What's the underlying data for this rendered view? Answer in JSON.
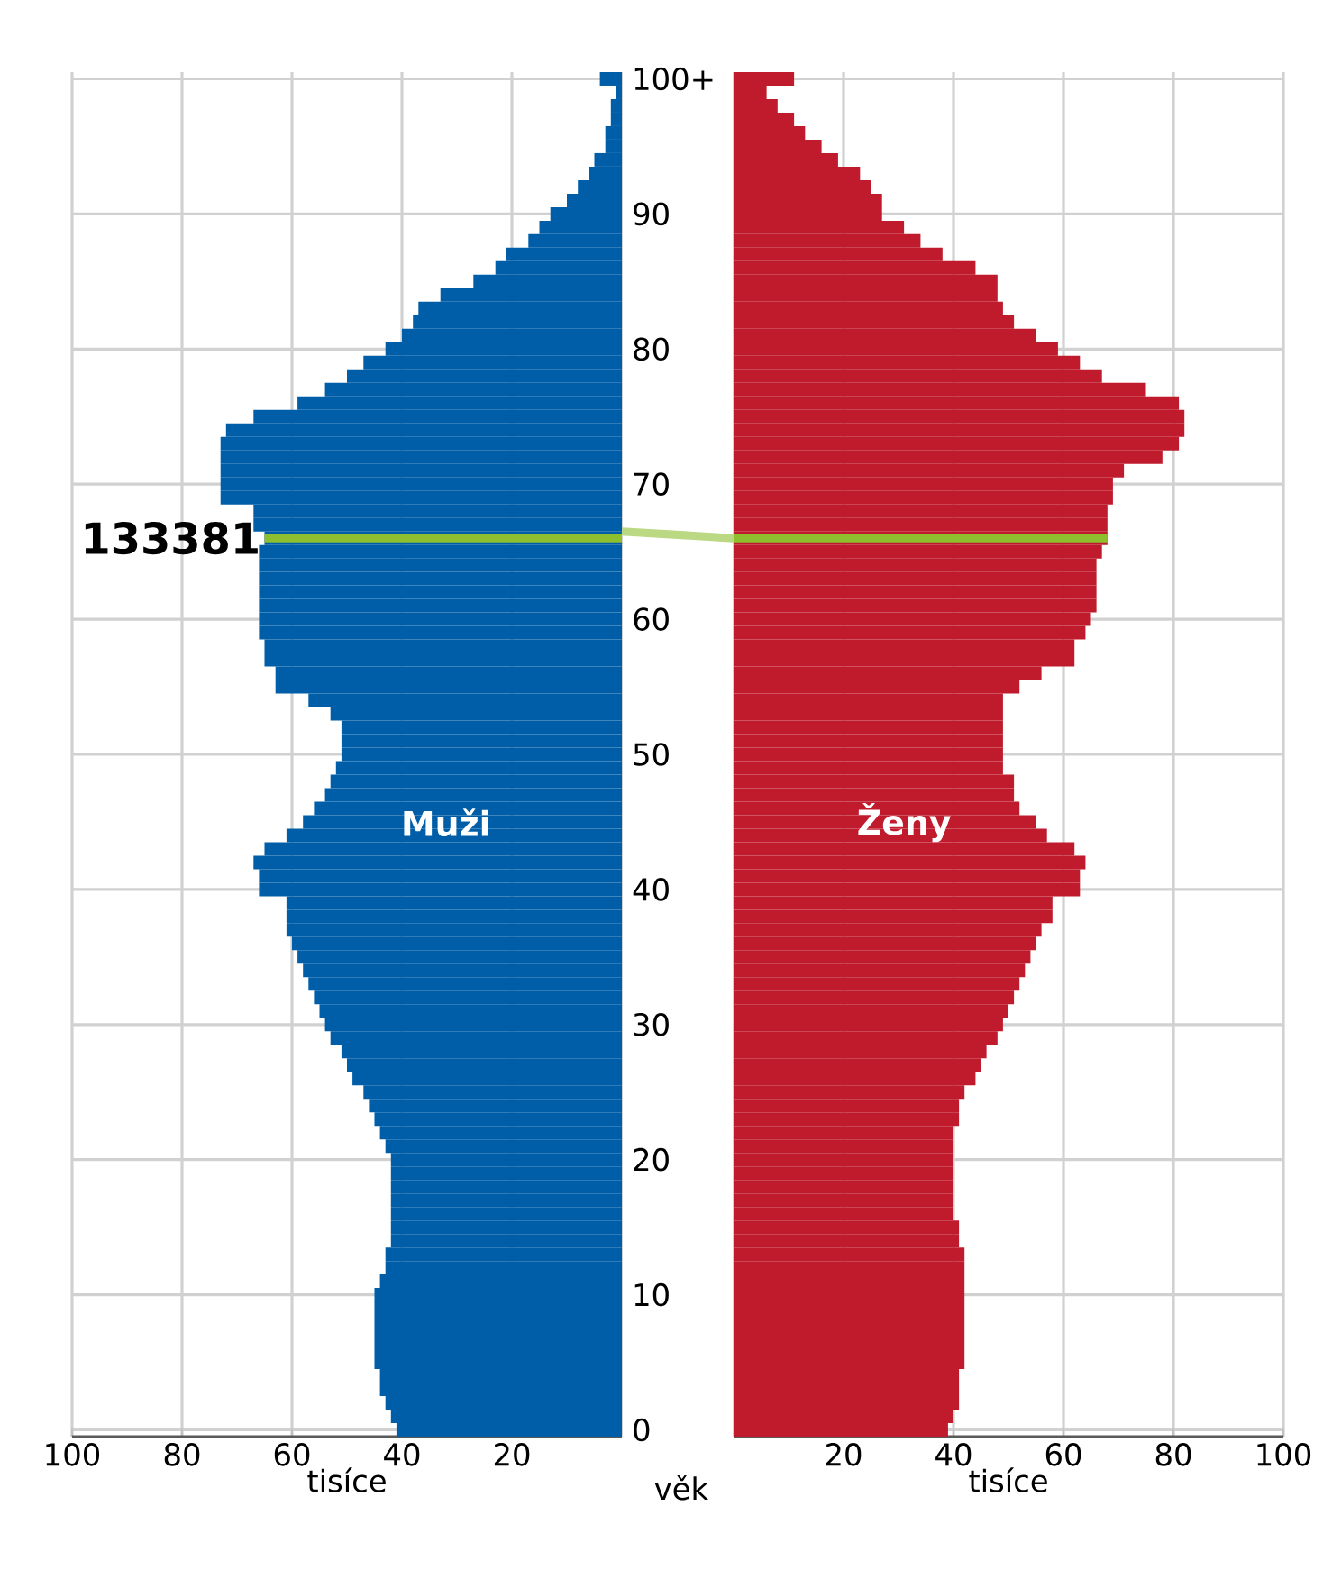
{
  "chart_data": [
    {
      "type": "bar",
      "orientation": "horizontal",
      "x": [
        100,
        99,
        98,
        97,
        96,
        95,
        94,
        93,
        92,
        91,
        90,
        89,
        88,
        87,
        86,
        85,
        84,
        83,
        82,
        81,
        80,
        79,
        78,
        77,
        76,
        75,
        74,
        73,
        72,
        71,
        70,
        69,
        68,
        67,
        66,
        65,
        64,
        63,
        62,
        61,
        60,
        59,
        58,
        57,
        56,
        55,
        54,
        53,
        52,
        51,
        50,
        49,
        48,
        47,
        46,
        45,
        44,
        43,
        42,
        41,
        40,
        39,
        38,
        37,
        36,
        35,
        34,
        33,
        32,
        31,
        30,
        29,
        28,
        27,
        26,
        25,
        24,
        23,
        22,
        21,
        20,
        19,
        18,
        17,
        16,
        15,
        14,
        13,
        12,
        11,
        10,
        9,
        8,
        7,
        6,
        5,
        4,
        3,
        2,
        1,
        0
      ],
      "series": [
        {
          "name": "Muži",
          "color": "#005ea8",
          "values": [
            4,
            1,
            2,
            2,
            3,
            3,
            5,
            6,
            8,
            10,
            13,
            15,
            17,
            21,
            23,
            27,
            33,
            37,
            38,
            40,
            43,
            47,
            50,
            54,
            59,
            67,
            72,
            73,
            73,
            73,
            73,
            73,
            67,
            67,
            65,
            66,
            66,
            66,
            66,
            66,
            66,
            66,
            65,
            65,
            63,
            63,
            57,
            53,
            51,
            51,
            51,
            52,
            53,
            54,
            56,
            58,
            61,
            65,
            67,
            66,
            66,
            61,
            61,
            61,
            60,
            59,
            58,
            57,
            56,
            55,
            54,
            53,
            51,
            50,
            49,
            47,
            46,
            45,
            44,
            43,
            42,
            42,
            42,
            42,
            42,
            42,
            42,
            43,
            43,
            44,
            45,
            45,
            45,
            45,
            45,
            45,
            44,
            44,
            43,
            42,
            41
          ]
        }
      ],
      "xlim": [
        100,
        0
      ],
      "xticks": [
        100,
        80,
        60,
        40,
        20
      ],
      "ylim": [
        -0.5,
        100.5
      ],
      "yticks": [
        0,
        10,
        20,
        30,
        40,
        50,
        60,
        70,
        80,
        90,
        {
          "value": 100,
          "label": "100+"
        }
      ],
      "xlabel": "tisíce",
      "ylabel": "věk",
      "grid": true,
      "ref_lines": [
        {
          "axis": "y",
          "value": 66,
          "color": "#8dbf2f"
        }
      ],
      "annotations": [
        {
          "text": "133381",
          "x": 65,
          "y": 66
        }
      ]
    },
    {
      "type": "bar",
      "orientation": "horizontal",
      "x": [
        100,
        99,
        98,
        97,
        96,
        95,
        94,
        93,
        92,
        91,
        90,
        89,
        88,
        87,
        86,
        85,
        84,
        83,
        82,
        81,
        80,
        79,
        78,
        77,
        76,
        75,
        74,
        73,
        72,
        71,
        70,
        69,
        68,
        67,
        66,
        65,
        64,
        63,
        62,
        61,
        60,
        59,
        58,
        57,
        56,
        55,
        54,
        53,
        52,
        51,
        50,
        49,
        48,
        47,
        46,
        45,
        44,
        43,
        42,
        41,
        40,
        39,
        38,
        37,
        36,
        35,
        34,
        33,
        32,
        31,
        30,
        29,
        28,
        27,
        26,
        25,
        24,
        23,
        22,
        21,
        20,
        19,
        18,
        17,
        16,
        15,
        14,
        13,
        12,
        11,
        10,
        9,
        8,
        7,
        6,
        5,
        4,
        3,
        2,
        1,
        0
      ],
      "series": [
        {
          "name": "Ženy",
          "color": "#c01b2c",
          "values": [
            11,
            6,
            8,
            11,
            13,
            16,
            19,
            23,
            25,
            27,
            27,
            31,
            34,
            38,
            44,
            48,
            48,
            49,
            51,
            55,
            59,
            63,
            67,
            75,
            81,
            82,
            82,
            81,
            78,
            71,
            69,
            69,
            68,
            68,
            68,
            67,
            66,
            66,
            66,
            66,
            65,
            64,
            62,
            62,
            56,
            52,
            49,
            49,
            49,
            49,
            49,
            49,
            51,
            51,
            52,
            55,
            57,
            62,
            64,
            63,
            63,
            58,
            58,
            56,
            55,
            54,
            53,
            52,
            51,
            50,
            49,
            48,
            46,
            45,
            44,
            42,
            41,
            41,
            40,
            40,
            40,
            40,
            40,
            40,
            40,
            41,
            41,
            42,
            42,
            42,
            42,
            42,
            42,
            42,
            42,
            42,
            41,
            41,
            41,
            40,
            39
          ]
        }
      ],
      "xlim": [
        0,
        100
      ],
      "xticks": [
        20,
        40,
        60,
        80,
        100
      ],
      "ylim": [
        -0.5,
        100.5
      ],
      "yticks": [
        0,
        10,
        20,
        30,
        40,
        50,
        60,
        70,
        80,
        90,
        100
      ],
      "xlabel": "tisíce",
      "grid": true,
      "tick_labels": "x",
      "ref_lines": [
        {
          "axis": "y",
          "value": 66,
          "color": "#8dbf2f"
        }
      ]
    }
  ]
}
